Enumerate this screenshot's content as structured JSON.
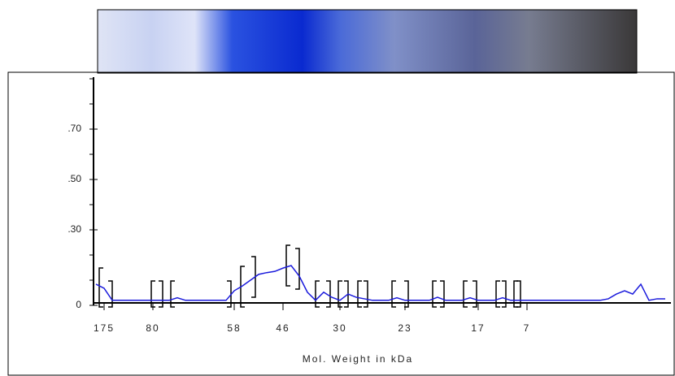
{
  "chart_data": {
    "type": "line",
    "x_label": "Mol. Weight in kDa",
    "categories": [
      null,
      "175",
      null,
      null,
      null,
      null,
      null,
      "80",
      null,
      null,
      null,
      null,
      null,
      null,
      null,
      null,
      null,
      "58",
      null,
      null,
      null,
      null,
      null,
      "46",
      null,
      null,
      null,
      null,
      null,
      null,
      "30",
      null,
      null,
      null,
      null,
      null,
      null,
      null,
      "23",
      null,
      null,
      null,
      null,
      null,
      null,
      null,
      null,
      "17",
      null,
      null,
      null,
      null,
      null,
      "7",
      null,
      null,
      null,
      null,
      null,
      null,
      null,
      null,
      null,
      null,
      null,
      null,
      null,
      null,
      null,
      null,
      null
    ],
    "series": [
      {
        "color": "#1a1adc",
        "values": [
          0.084,
          0.068,
          0.02,
          0.02,
          0.02,
          0.02,
          0.02,
          0.02,
          0.02,
          0.02,
          0.03,
          0.02,
          0.02,
          0.02,
          0.02,
          0.02,
          0.02,
          0.058,
          0.077,
          0.1,
          0.123,
          0.13,
          0.135,
          0.148,
          0.158,
          0.116,
          0.052,
          0.02,
          0.052,
          0.032,
          0.02,
          0.045,
          0.032,
          0.026,
          0.02,
          0.02,
          0.02,
          0.03,
          0.02,
          0.02,
          0.02,
          0.02,
          0.032,
          0.02,
          0.02,
          0.02,
          0.03,
          0.02,
          0.02,
          0.02,
          0.03,
          0.02,
          0.02,
          0.02,
          0.02,
          0.02,
          0.02,
          0.02,
          0.02,
          0.02,
          0.02,
          0.02,
          0.02,
          0.026,
          0.045,
          0.058,
          0.045,
          0.084,
          0.02,
          0.026,
          0.026
        ]
      }
    ],
    "ylim": [
      0,
      0.9
    ],
    "yticks": [
      {
        "value": 0.7,
        "label": ".70"
      },
      {
        "value": 0.5,
        "label": ".50"
      },
      {
        "value": 0.3,
        "label": ".30"
      },
      0
    ]
  }
}
